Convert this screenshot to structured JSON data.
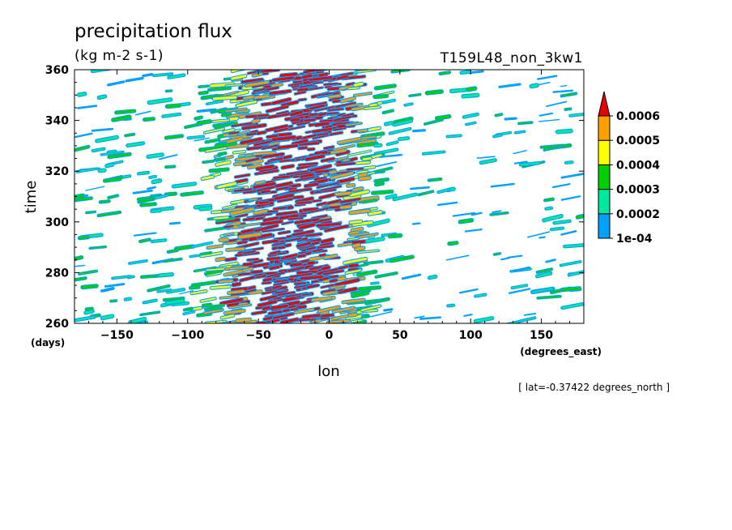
{
  "chart_data": {
    "type": "heatmap",
    "title": "precipitation flux",
    "units": "(kg m-2 s-1)",
    "experiment": "T159L48_non_3kw1",
    "xlabel": "lon",
    "xunits": "(degrees_east)",
    "ylabel": "time",
    "yunits": "(days)",
    "annotation": "[ lat=-0.37422 degrees_north ]",
    "xlim": [
      -180,
      180
    ],
    "ylim": [
      260,
      360
    ],
    "x_ticks": [
      -150,
      -100,
      -50,
      0,
      50,
      100,
      150
    ],
    "x_tick_labels": [
      "−150",
      "−100",
      "−50",
      "0",
      "50",
      "100",
      "150"
    ],
    "y_ticks": [
      260,
      280,
      300,
      320,
      340,
      360
    ],
    "y_tick_labels": [
      "260",
      "280",
      "300",
      "320",
      "340",
      "360"
    ],
    "colorbar": {
      "levels": [
        0.0001,
        0.0002,
        0.0003,
        0.0004,
        0.0005,
        0.0006
      ],
      "labels": [
        "1e-04",
        "0.0002",
        "0.0003",
        "0.0004",
        "0.0005",
        "0.0006"
      ],
      "colors": [
        "#00a0ff",
        "#00e8a0",
        "#00d000",
        "#ffff00",
        "#ffa000",
        "#e80000"
      ],
      "extend": "max"
    },
    "description_of_field": "Precipitation concentrated between about -110 and 45 degrees east with maximum intensity near -50 to 30; sparse light streaks elsewhere, tilted eastward with time.",
    "field_model": {
      "core_center_lon": -25,
      "core_halfwidth_lon": 65,
      "core_edge_west": -130,
      "core_edge_east": 48,
      "quiet_band_lon": [
        55,
        135
      ],
      "quiet_band_time": [
        265,
        330
      ]
    }
  }
}
